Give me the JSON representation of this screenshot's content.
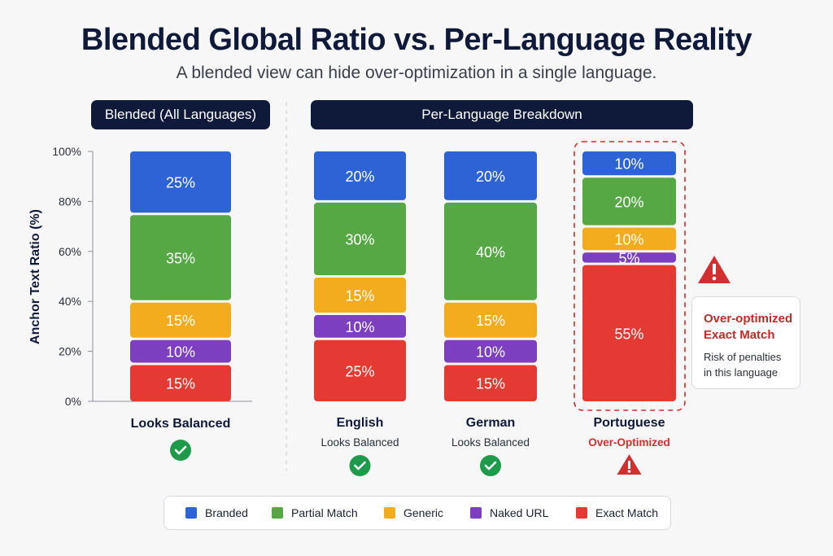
{
  "header": {
    "title": "Blended Global Ratio vs. Per-Language Reality",
    "subtitle": "A blended view can hide over-optimization in a single language."
  },
  "panels": {
    "blended_label": "Blended (All Languages)",
    "per_language_label": "Per-Language Breakdown"
  },
  "warning_card": {
    "title_line1": "Over-optimized",
    "title_line2": "Exact Match",
    "body_line1": "Risk of penalties",
    "body_line2": "in this language"
  },
  "colors": {
    "Branded": "#2e63d6",
    "Partial Match": "#56a845",
    "Generic": "#f3ac1d",
    "Naked URL": "#7b3fc0",
    "Exact Match": "#e43a33",
    "ok": "#1d9a4a",
    "alert": "#d32f2f"
  },
  "chart_data": {
    "type": "bar",
    "stacked": true,
    "ylabel": "Anchor Text Ratio (%)",
    "ylim": [
      0,
      100
    ],
    "yticks": [
      "0%",
      "20%",
      "40%",
      "60%",
      "80%",
      "100%"
    ],
    "categories": [
      "Blended",
      "English",
      "German",
      "Portuguese"
    ],
    "category_labels": [
      "Looks Balanced",
      "English",
      "German",
      "Portuguese"
    ],
    "category_sublabels": [
      "",
      "Looks Balanced",
      "Looks Balanced",
      "Over-Optimized"
    ],
    "status": [
      "ok",
      "ok",
      "ok",
      "alert"
    ],
    "series": [
      {
        "name": "Exact Match",
        "values": [
          15,
          25,
          15,
          55
        ]
      },
      {
        "name": "Naked URL",
        "values": [
          10,
          10,
          10,
          5
        ]
      },
      {
        "name": "Generic",
        "values": [
          15,
          15,
          15,
          10
        ]
      },
      {
        "name": "Partial Match",
        "values": [
          35,
          30,
          40,
          20
        ]
      },
      {
        "name": "Branded",
        "values": [
          25,
          20,
          20,
          10
        ]
      }
    ],
    "legend": [
      "Branded",
      "Partial Match",
      "Generic",
      "Naked URL",
      "Exact Match"
    ],
    "legend_position": "bottom"
  }
}
